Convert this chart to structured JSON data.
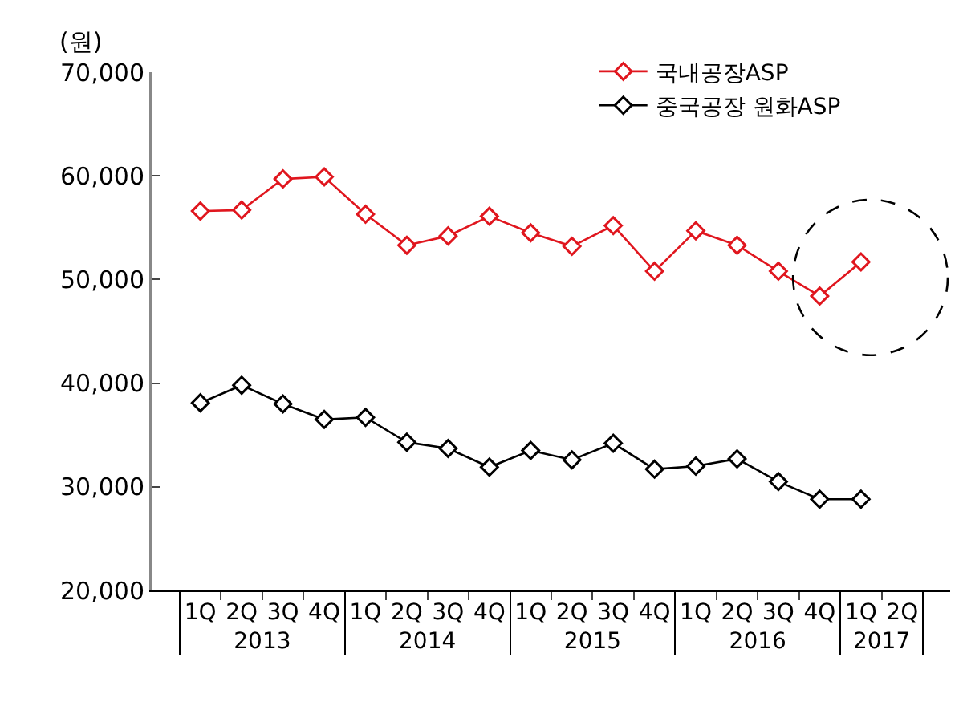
{
  "chart_data": {
    "type": "line",
    "ylabel": "(원)",
    "categories": [
      "1Q",
      "2Q",
      "3Q",
      "4Q",
      "1Q",
      "2Q",
      "3Q",
      "4Q",
      "1Q",
      "2Q",
      "3Q",
      "4Q",
      "1Q",
      "2Q",
      "3Q",
      "4Q",
      "1Q",
      "2Q"
    ],
    "annotations": [
      "2013",
      "2014",
      "2015",
      "2016",
      "2017"
    ],
    "series": [
      {
        "name": "국내공장ASP",
        "color": "#e0161e",
        "values": [
          56600,
          56700,
          59700,
          59900,
          56300,
          53300,
          54200,
          56100,
          54500,
          53200,
          55200,
          50800,
          54700,
          53300,
          50800,
          48400,
          51700,
          null
        ]
      },
      {
        "name": "중국공장 원화ASP",
        "color": "#000000",
        "values": [
          38100,
          39800,
          38000,
          36500,
          36700,
          34300,
          33700,
          31900,
          33500,
          32600,
          34200,
          31700,
          32000,
          32700,
          30500,
          28800,
          28800,
          null
        ]
      }
    ],
    "ylim": [
      20000,
      70000
    ],
    "yticks": [
      {
        "value": 20000,
        "label": "20,000"
      },
      {
        "value": 30000,
        "label": "30,000"
      },
      {
        "value": 40000,
        "label": "40,000"
      },
      {
        "value": 50000,
        "label": "50,000"
      },
      {
        "value": 60000,
        "label": "60,000"
      },
      {
        "value": 70000,
        "label": "70,000"
      }
    ],
    "legend": "top right",
    "marker": "diamond",
    "line_style": "solid"
  }
}
